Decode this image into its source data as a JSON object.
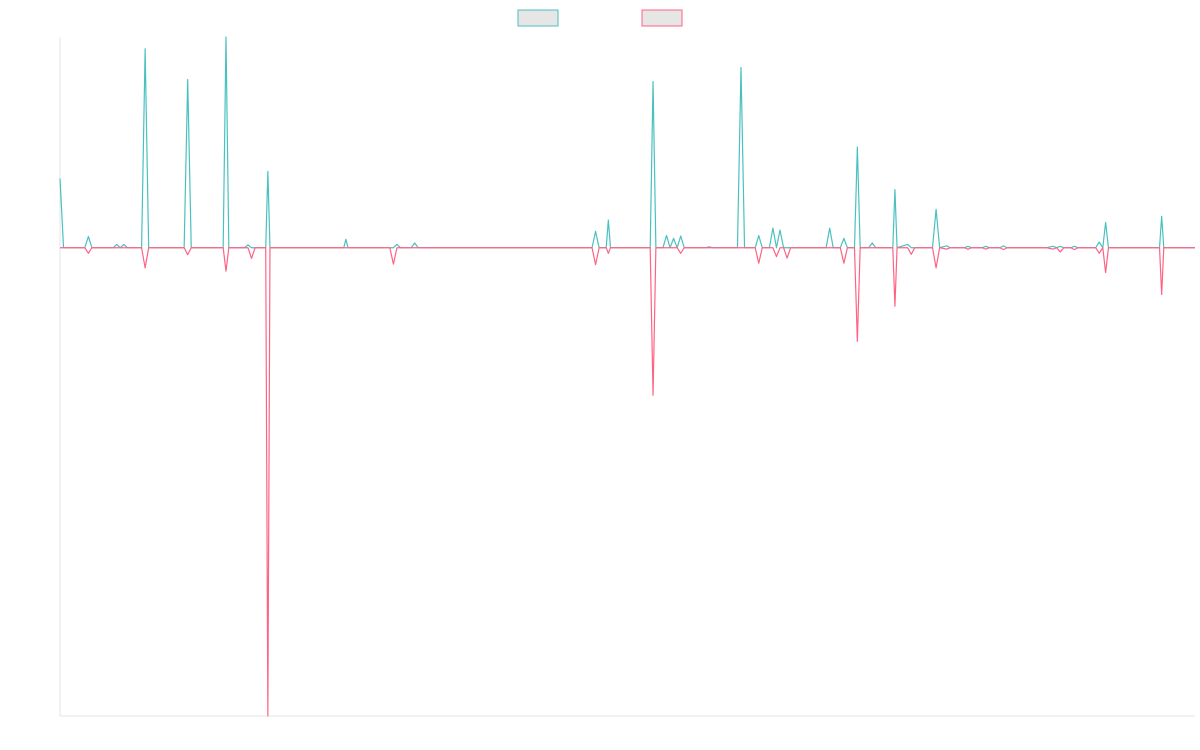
{
  "chart_data": {
    "type": "line",
    "title": "",
    "xlabel": "",
    "ylabel": "",
    "grid": false,
    "legend": {
      "placement": "top-center",
      "entries": [
        {
          "label": "",
          "color": "#4bc0c0",
          "fill": "#e6e6e6"
        },
        {
          "label": "",
          "color": "#ff6384",
          "fill": "#e6e6e6"
        }
      ]
    },
    "xlim": [
      0,
      160
    ],
    "ylim": [
      -1,
      0.45
    ],
    "series": [
      {
        "name": "",
        "color": "#4bc0c0",
        "points": [
          [
            0,
            0.148
          ],
          [
            0.5,
            0
          ],
          [
            3.5,
            0
          ],
          [
            4,
            0.024
          ],
          [
            4.5,
            0
          ],
          [
            7.5,
            0
          ],
          [
            8,
            0.007
          ],
          [
            8.5,
            0
          ],
          [
            9,
            0.007
          ],
          [
            9.5,
            0
          ],
          [
            11.5,
            0
          ],
          [
            12,
            0.425
          ],
          [
            12.5,
            0
          ],
          [
            17.5,
            0
          ],
          [
            18,
            0.359
          ],
          [
            18.5,
            0
          ],
          [
            23,
            0
          ],
          [
            23.4,
            0.45
          ],
          [
            23.8,
            0
          ],
          [
            26,
            0
          ],
          [
            26.5,
            0.006
          ],
          [
            27,
            0
          ],
          [
            29,
            0
          ],
          [
            29.3,
            0.163
          ],
          [
            29.6,
            0
          ],
          [
            40,
            0
          ],
          [
            40.3,
            0.018
          ],
          [
            40.6,
            0
          ],
          [
            47,
            0
          ],
          [
            47.5,
            0.007
          ],
          [
            48,
            0
          ],
          [
            49.5,
            0
          ],
          [
            50,
            0.01
          ],
          [
            50.5,
            0
          ],
          [
            75,
            0
          ],
          [
            75.5,
            0.035
          ],
          [
            76,
            0
          ],
          [
            77,
            0
          ],
          [
            77.3,
            0.059
          ],
          [
            77.6,
            0
          ],
          [
            83.2,
            0
          ],
          [
            83.6,
            0.355
          ],
          [
            84,
            0
          ],
          [
            85,
            0
          ],
          [
            85.5,
            0.026
          ],
          [
            86,
            0
          ],
          [
            86.5,
            0.02
          ],
          [
            87,
            0
          ],
          [
            87.5,
            0.025
          ],
          [
            88,
            0
          ],
          [
            91,
            0
          ],
          [
            91.5,
            0.002
          ],
          [
            92,
            0
          ],
          [
            95.5,
            0
          ],
          [
            96,
            0.385
          ],
          [
            96.5,
            0
          ],
          [
            98,
            0
          ],
          [
            98.5,
            0.026
          ],
          [
            99,
            0
          ],
          [
            100,
            0
          ],
          [
            100.5,
            0.042
          ],
          [
            101,
            0
          ],
          [
            101.5,
            0.038
          ],
          [
            102,
            0
          ],
          [
            108,
            0
          ],
          [
            108.5,
            0.042
          ],
          [
            109,
            0
          ],
          [
            110,
            0
          ],
          [
            110.5,
            0.02
          ],
          [
            111,
            0
          ],
          [
            112,
            0
          ],
          [
            112.4,
            0.215
          ],
          [
            112.8,
            0
          ],
          [
            114,
            0
          ],
          [
            114.5,
            0.01
          ],
          [
            115,
            0
          ],
          [
            117.4,
            0
          ],
          [
            117.7,
            0.124
          ],
          [
            118,
            0
          ],
          [
            119.5,
            0.007
          ],
          [
            120,
            0
          ],
          [
            123,
            0
          ],
          [
            123.5,
            0.082
          ],
          [
            124,
            0
          ],
          [
            125,
            0.004
          ],
          [
            125.5,
            0
          ],
          [
            127.5,
            0
          ],
          [
            128,
            0.003
          ],
          [
            128.5,
            0
          ],
          [
            130,
            0
          ],
          [
            130.5,
            0.003
          ],
          [
            131,
            0
          ],
          [
            132.5,
            0
          ],
          [
            133,
            0.004
          ],
          [
            133.5,
            0
          ],
          [
            139,
            0
          ],
          [
            140,
            0.003
          ],
          [
            140.5,
            0
          ],
          [
            141,
            0.003
          ],
          [
            141.5,
            0
          ],
          [
            142.5,
            0
          ],
          [
            143,
            0.003
          ],
          [
            143.5,
            0
          ],
          [
            146,
            0
          ],
          [
            146.5,
            0.012
          ],
          [
            147,
            0
          ],
          [
            147.4,
            0.054
          ],
          [
            147.8,
            0
          ],
          [
            155,
            0
          ],
          [
            155.3,
            0.067
          ],
          [
            155.6,
            0
          ],
          [
            160,
            0
          ]
        ]
      },
      {
        "name": "",
        "color": "#ff6384",
        "points": [
          [
            0,
            0
          ],
          [
            3.5,
            0
          ],
          [
            4,
            -0.012
          ],
          [
            4.5,
            0
          ],
          [
            11.5,
            0
          ],
          [
            12,
            -0.043
          ],
          [
            12.5,
            0
          ],
          [
            17.5,
            0
          ],
          [
            18,
            -0.015
          ],
          [
            18.5,
            0
          ],
          [
            23,
            0
          ],
          [
            23.4,
            -0.05
          ],
          [
            23.8,
            0
          ],
          [
            26.5,
            0
          ],
          [
            27,
            -0.023
          ],
          [
            27.5,
            0
          ],
          [
            29,
            0
          ],
          [
            29.3,
            -1.0
          ],
          [
            29.6,
            0
          ],
          [
            46.5,
            0
          ],
          [
            47,
            -0.035
          ],
          [
            47.5,
            0
          ],
          [
            75,
            0
          ],
          [
            75.5,
            -0.036
          ],
          [
            76,
            0
          ],
          [
            77,
            0
          ],
          [
            77.3,
            -0.012
          ],
          [
            77.6,
            0
          ],
          [
            83.2,
            0
          ],
          [
            83.6,
            -0.315
          ],
          [
            84,
            0
          ],
          [
            87,
            0
          ],
          [
            87.5,
            -0.012
          ],
          [
            88,
            0
          ],
          [
            98,
            0
          ],
          [
            98.5,
            -0.033
          ],
          [
            99,
            0
          ],
          [
            100.5,
            0
          ],
          [
            101,
            -0.019
          ],
          [
            101.5,
            0
          ],
          [
            102,
            0
          ],
          [
            102.5,
            -0.022
          ],
          [
            103,
            0
          ],
          [
            110,
            0
          ],
          [
            110.5,
            -0.033
          ],
          [
            111,
            0
          ],
          [
            112,
            0
          ],
          [
            112.4,
            -0.2
          ],
          [
            112.8,
            0
          ],
          [
            117.4,
            0
          ],
          [
            117.7,
            -0.125
          ],
          [
            118,
            0
          ],
          [
            119.5,
            0
          ],
          [
            120,
            -0.014
          ],
          [
            120.5,
            0
          ],
          [
            123,
            0
          ],
          [
            123.5,
            -0.043
          ],
          [
            124,
            0
          ],
          [
            125,
            -0.003
          ],
          [
            125.5,
            0
          ],
          [
            127.5,
            0
          ],
          [
            128,
            -0.003
          ],
          [
            128.5,
            0
          ],
          [
            130,
            0
          ],
          [
            130.5,
            -0.003
          ],
          [
            131,
            0
          ],
          [
            132.5,
            0
          ],
          [
            133,
            -0.004
          ],
          [
            133.5,
            0
          ],
          [
            139,
            0
          ],
          [
            140,
            -0.003
          ],
          [
            140.5,
            0
          ],
          [
            141,
            -0.009
          ],
          [
            141.5,
            0
          ],
          [
            142.5,
            0
          ],
          [
            143,
            -0.004
          ],
          [
            143.5,
            0
          ],
          [
            146,
            0
          ],
          [
            146.5,
            -0.012
          ],
          [
            147,
            0
          ],
          [
            147.4,
            -0.053
          ],
          [
            147.8,
            0
          ],
          [
            155,
            0
          ],
          [
            155.3,
            -0.1
          ],
          [
            155.6,
            0
          ],
          [
            160,
            0
          ]
        ]
      }
    ]
  }
}
